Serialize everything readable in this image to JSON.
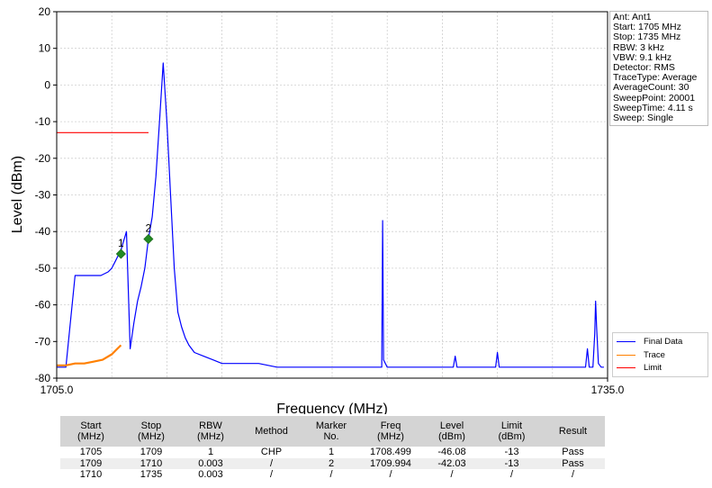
{
  "chart_data": {
    "type": "line",
    "xlabel": "Frequency (MHz)",
    "ylabel": "Level (dBm)",
    "xlim": [
      1705.0,
      1735.0
    ],
    "ylim": [
      -80,
      20
    ],
    "x_ticks": [
      "1705.0",
      "1735.0"
    ],
    "y_ticks": [
      20,
      10,
      0,
      -10,
      -20,
      -30,
      -40,
      -50,
      -60,
      -70,
      -80
    ],
    "grid": true,
    "legend_placement": "bottom-right",
    "series": [
      {
        "name": "Final Data",
        "color": "#0000ff",
        "x": [
          1705.0,
          1705.3,
          1705.5,
          1706.0,
          1706.8,
          1707.4,
          1707.8,
          1708.0,
          1708.2,
          1708.5,
          1708.8,
          1709.0,
          1709.2,
          1709.4,
          1709.6,
          1709.8,
          1709.994,
          1710.2,
          1710.4,
          1710.6,
          1710.8,
          1711.0,
          1711.2,
          1711.4,
          1711.6,
          1711.8,
          1712.0,
          1712.2,
          1712.5,
          1713.0,
          1713.5,
          1714.0,
          1714.5,
          1715.0,
          1716.0,
          1717.0,
          1718.0,
          1719.0,
          1720.0,
          1721.0,
          1722.0,
          1722.7,
          1722.75,
          1722.8,
          1723.0,
          1724.0,
          1725.0,
          1726.0,
          1726.6,
          1726.7,
          1726.8,
          1727.0,
          1728.0,
          1728.9,
          1729.0,
          1729.1,
          1730.0,
          1731.0,
          1732.0,
          1733.0,
          1733.8,
          1733.9,
          1734.0,
          1734.2,
          1734.3,
          1734.35,
          1734.4,
          1734.5,
          1734.65,
          1734.8
        ],
        "y": [
          -77,
          -77,
          -77,
          -52,
          -52,
          -52,
          -51,
          -50,
          -48,
          -45,
          -40,
          -72,
          -65,
          -59,
          -55,
          -50,
          -42,
          -36,
          -25,
          -10,
          6,
          -10,
          -30,
          -50,
          -62,
          -66,
          -69,
          -71,
          -73,
          -74,
          -75,
          -76,
          -76,
          -76,
          -76,
          -77,
          -77,
          -77,
          -77,
          -77,
          -77,
          -77,
          -37,
          -75,
          -77,
          -77,
          -77,
          -77,
          -77,
          -74,
          -77,
          -77,
          -77,
          -77,
          -73,
          -77,
          -77,
          -77,
          -77,
          -77,
          -77,
          -72,
          -77,
          -77,
          -68,
          -59,
          -66,
          -76,
          -77,
          -77
        ]
      },
      {
        "name": "Trace",
        "color": "#ff8000",
        "x": [
          1705.0,
          1705.5,
          1706.0,
          1706.5,
          1707.0,
          1707.5,
          1708.0,
          1708.3,
          1708.5
        ],
        "y": [
          -76.5,
          -76.5,
          -76,
          -76,
          -75.5,
          -75,
          -73.5,
          -72,
          -71
        ]
      },
      {
        "name": "Limit",
        "color": "#ff0000",
        "x": [
          1705.0,
          1710.0
        ],
        "y": [
          -13,
          -13
        ]
      }
    ],
    "markers": [
      {
        "label": "1",
        "x": 1708.499,
        "y": -46.08
      },
      {
        "label": "2",
        "x": 1709.994,
        "y": -42.03
      }
    ]
  },
  "info": {
    "lines": [
      "Ant: Ant1",
      "Start: 1705 MHz",
      "Stop: 1735 MHz",
      "RBW: 3 kHz",
      "VBW: 9.1 kHz",
      "Detector: RMS",
      "TraceType: Average",
      "AverageCount: 30",
      "SweepPoint: 20001",
      "SweepTime: 4.11 s",
      "Sweep: Single"
    ]
  },
  "legend": {
    "items": [
      {
        "label": "Final Data",
        "color": "#0000ff"
      },
      {
        "label": "Trace",
        "color": "#ff8000"
      },
      {
        "label": "Limit",
        "color": "#ff0000"
      }
    ]
  },
  "table": {
    "headers": [
      "Start\n(MHz)",
      "Stop\n(MHz)",
      "RBW\n(MHz)",
      "Method",
      "Marker\nNo.",
      "Freq\n(MHz)",
      "Level\n(dBm)",
      "Limit\n(dBm)",
      "Result"
    ],
    "rows": [
      [
        "1705",
        "1709",
        "1",
        "CHP",
        "1",
        "1708.499",
        "-46.08",
        "-13",
        "Pass"
      ],
      [
        "1709",
        "1710",
        "0.003",
        "/",
        "2",
        "1709.994",
        "-42.03",
        "-13",
        "Pass"
      ],
      [
        "1710",
        "1735",
        "0.003",
        "/",
        "/",
        "/",
        "/",
        "/",
        "/"
      ]
    ]
  }
}
